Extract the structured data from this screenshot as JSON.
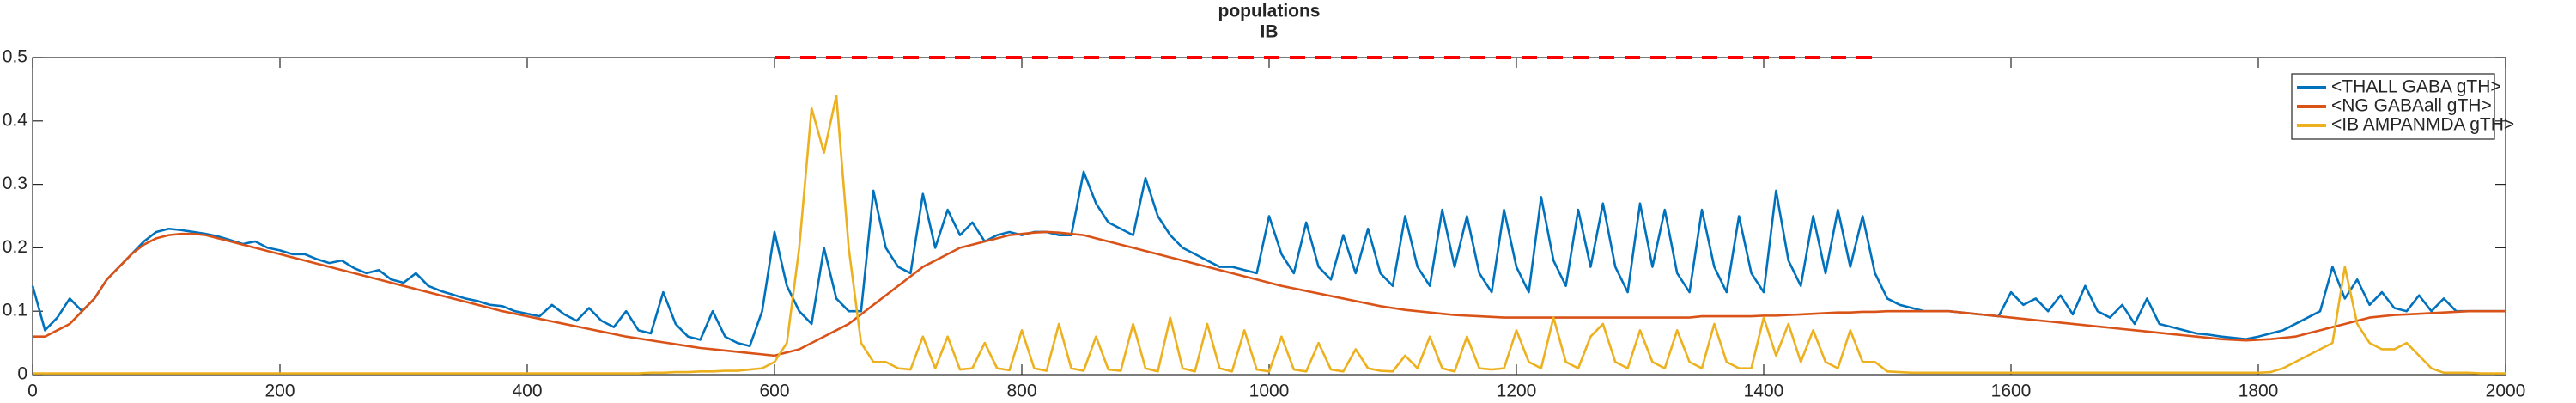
{
  "chart_data": {
    "type": "line",
    "title": "populations",
    "subtitle": "IB",
    "x": [
      0,
      10,
      20,
      30,
      40,
      50,
      60,
      70,
      80,
      90,
      100,
      110,
      120,
      130,
      140,
      150,
      160,
      170,
      180,
      190,
      200,
      210,
      220,
      230,
      240,
      250,
      260,
      270,
      280,
      290,
      300,
      310,
      320,
      330,
      340,
      350,
      360,
      370,
      380,
      390,
      400,
      410,
      420,
      430,
      440,
      450,
      460,
      470,
      480,
      490,
      500,
      510,
      520,
      530,
      540,
      550,
      560,
      570,
      580,
      590,
      600,
      610,
      620,
      630,
      640,
      650,
      660,
      670,
      680,
      690,
      700,
      710,
      720,
      730,
      740,
      750,
      760,
      770,
      780,
      790,
      800,
      810,
      820,
      830,
      840,
      850,
      860,
      870,
      880,
      890,
      900,
      910,
      920,
      930,
      940,
      950,
      960,
      970,
      980,
      990,
      1000,
      1010,
      1020,
      1030,
      1040,
      1050,
      1060,
      1070,
      1080,
      1090,
      1100,
      1110,
      1120,
      1130,
      1140,
      1150,
      1160,
      1170,
      1180,
      1190,
      1200,
      1210,
      1220,
      1230,
      1240,
      1250,
      1260,
      1270,
      1280,
      1290,
      1300,
      1310,
      1320,
      1330,
      1340,
      1350,
      1360,
      1370,
      1380,
      1390,
      1400,
      1410,
      1420,
      1430,
      1440,
      1450,
      1460,
      1470,
      1480,
      1490,
      1500,
      1510,
      1520,
      1530,
      1540,
      1550,
      1560,
      1570,
      1580,
      1590,
      1600,
      1610,
      1620,
      1630,
      1640,
      1650,
      1660,
      1670,
      1680,
      1690,
      1700,
      1710,
      1720,
      1730,
      1740,
      1750,
      1760,
      1770,
      1780,
      1790,
      1800,
      1810,
      1820,
      1830,
      1840,
      1850,
      1860,
      1870,
      1880,
      1890,
      1900,
      1910,
      1920,
      1930,
      1940,
      1950,
      1960,
      1970,
      1980,
      1990,
      2000
    ],
    "series": [
      {
        "name": "<THALL GABA gTH>",
        "color": "#0072bd",
        "values": [
          0.14,
          0.07,
          0.09,
          0.12,
          0.1,
          0.12,
          0.15,
          0.17,
          0.19,
          0.21,
          0.225,
          0.23,
          0.228,
          0.225,
          0.222,
          0.218,
          0.212,
          0.206,
          0.21,
          0.2,
          0.196,
          0.19,
          0.19,
          0.182,
          0.176,
          0.18,
          0.168,
          0.16,
          0.165,
          0.15,
          0.145,
          0.16,
          0.14,
          0.132,
          0.126,
          0.12,
          0.116,
          0.11,
          0.108,
          0.1,
          0.096,
          0.092,
          0.11,
          0.095,
          0.085,
          0.105,
          0.085,
          0.075,
          0.1,
          0.07,
          0.065,
          0.13,
          0.08,
          0.06,
          0.055,
          0.1,
          0.06,
          0.05,
          0.045,
          0.1,
          0.225,
          0.14,
          0.1,
          0.08,
          0.2,
          0.12,
          0.1,
          0.1,
          0.29,
          0.2,
          0.17,
          0.16,
          0.285,
          0.2,
          0.26,
          0.22,
          0.24,
          0.21,
          0.22,
          0.225,
          0.22,
          0.225,
          0.225,
          0.22,
          0.22,
          0.32,
          0.27,
          0.24,
          0.23,
          0.22,
          0.31,
          0.25,
          0.22,
          0.2,
          0.19,
          0.18,
          0.17,
          0.17,
          0.165,
          0.16,
          0.25,
          0.19,
          0.16,
          0.24,
          0.17,
          0.15,
          0.22,
          0.16,
          0.23,
          0.16,
          0.14,
          0.25,
          0.17,
          0.14,
          0.26,
          0.17,
          0.25,
          0.16,
          0.13,
          0.26,
          0.17,
          0.13,
          0.28,
          0.18,
          0.14,
          0.26,
          0.17,
          0.27,
          0.17,
          0.13,
          0.27,
          0.17,
          0.26,
          0.16,
          0.13,
          0.26,
          0.17,
          0.13,
          0.25,
          0.16,
          0.13,
          0.29,
          0.18,
          0.14,
          0.25,
          0.16,
          0.26,
          0.17,
          0.25,
          0.16,
          0.12,
          0.11,
          0.105,
          0.1,
          0.1,
          0.1,
          0.098,
          0.096,
          0.094,
          0.092,
          0.13,
          0.11,
          0.12,
          0.1,
          0.125,
          0.095,
          0.14,
          0.1,
          0.09,
          0.11,
          0.08,
          0.12,
          0.08,
          0.075,
          0.07,
          0.065,
          0.063,
          0.06,
          0.058,
          0.056,
          0.06,
          0.065,
          0.07,
          0.08,
          0.09,
          0.1,
          0.17,
          0.12,
          0.15,
          0.11,
          0.13,
          0.105,
          0.1,
          0.125,
          0.1,
          0.12,
          0.1,
          0.1,
          0.1,
          0.1,
          0.1
        ]
      },
      {
        "name": "<NG GABAall gTH>",
        "color": "#d95319",
        "values": [
          0.06,
          0.06,
          0.07,
          0.08,
          0.1,
          0.12,
          0.15,
          0.17,
          0.19,
          0.205,
          0.215,
          0.22,
          0.222,
          0.222,
          0.22,
          0.215,
          0.21,
          0.205,
          0.2,
          0.195,
          0.19,
          0.185,
          0.18,
          0.175,
          0.17,
          0.165,
          0.16,
          0.155,
          0.15,
          0.145,
          0.14,
          0.135,
          0.13,
          0.125,
          0.12,
          0.115,
          0.11,
          0.105,
          0.1,
          0.096,
          0.092,
          0.088,
          0.084,
          0.08,
          0.076,
          0.072,
          0.068,
          0.064,
          0.06,
          0.057,
          0.054,
          0.051,
          0.048,
          0.045,
          0.042,
          0.04,
          0.038,
          0.036,
          0.034,
          0.032,
          0.03,
          0.035,
          0.04,
          0.05,
          0.06,
          0.07,
          0.08,
          0.095,
          0.11,
          0.125,
          0.14,
          0.155,
          0.17,
          0.18,
          0.19,
          0.2,
          0.205,
          0.21,
          0.215,
          0.22,
          0.222,
          0.224,
          0.225,
          0.224,
          0.222,
          0.22,
          0.215,
          0.21,
          0.205,
          0.2,
          0.195,
          0.19,
          0.185,
          0.18,
          0.175,
          0.17,
          0.165,
          0.16,
          0.155,
          0.15,
          0.145,
          0.14,
          0.136,
          0.132,
          0.128,
          0.124,
          0.12,
          0.116,
          0.112,
          0.108,
          0.105,
          0.102,
          0.1,
          0.098,
          0.096,
          0.094,
          0.093,
          0.092,
          0.091,
          0.09,
          0.09,
          0.09,
          0.09,
          0.09,
          0.09,
          0.09,
          0.09,
          0.09,
          0.09,
          0.09,
          0.09,
          0.09,
          0.09,
          0.09,
          0.09,
          0.092,
          0.092,
          0.092,
          0.092,
          0.092,
          0.093,
          0.093,
          0.094,
          0.095,
          0.096,
          0.097,
          0.098,
          0.098,
          0.099,
          0.099,
          0.1,
          0.1,
          0.1,
          0.1,
          0.1,
          0.1,
          0.098,
          0.096,
          0.094,
          0.092,
          0.09,
          0.088,
          0.086,
          0.084,
          0.082,
          0.08,
          0.078,
          0.076,
          0.074,
          0.072,
          0.07,
          0.068,
          0.066,
          0.064,
          0.062,
          0.06,
          0.058,
          0.056,
          0.055,
          0.054,
          0.055,
          0.056,
          0.058,
          0.06,
          0.065,
          0.07,
          0.075,
          0.08,
          0.085,
          0.09,
          0.092,
          0.094,
          0.095,
          0.096,
          0.097,
          0.098,
          0.099,
          0.1,
          0.1,
          0.1,
          0.1
        ]
      },
      {
        "name": "<IB AMPANMDA gTH>",
        "color": "#edb120",
        "values": [
          0.002,
          0.002,
          0.002,
          0.002,
          0.002,
          0.002,
          0.002,
          0.002,
          0.002,
          0.002,
          0.002,
          0.002,
          0.002,
          0.002,
          0.002,
          0.002,
          0.002,
          0.002,
          0.002,
          0.002,
          0.002,
          0.002,
          0.002,
          0.002,
          0.002,
          0.002,
          0.002,
          0.002,
          0.002,
          0.002,
          0.002,
          0.002,
          0.002,
          0.002,
          0.002,
          0.002,
          0.002,
          0.002,
          0.002,
          0.002,
          0.002,
          0.002,
          0.002,
          0.002,
          0.002,
          0.002,
          0.002,
          0.002,
          0.002,
          0.002,
          0.003,
          0.003,
          0.004,
          0.004,
          0.005,
          0.005,
          0.006,
          0.006,
          0.008,
          0.01,
          0.02,
          0.05,
          0.2,
          0.42,
          0.35,
          0.44,
          0.2,
          0.05,
          0.02,
          0.02,
          0.01,
          0.008,
          0.06,
          0.01,
          0.06,
          0.008,
          0.01,
          0.05,
          0.01,
          0.007,
          0.07,
          0.01,
          0.006,
          0.08,
          0.01,
          0.006,
          0.06,
          0.008,
          0.006,
          0.08,
          0.01,
          0.005,
          0.09,
          0.01,
          0.005,
          0.08,
          0.01,
          0.005,
          0.07,
          0.008,
          0.005,
          0.06,
          0.008,
          0.005,
          0.05,
          0.008,
          0.005,
          0.04,
          0.01,
          0.006,
          0.005,
          0.03,
          0.01,
          0.06,
          0.01,
          0.005,
          0.06,
          0.01,
          0.008,
          0.01,
          0.07,
          0.02,
          0.01,
          0.09,
          0.02,
          0.01,
          0.06,
          0.08,
          0.02,
          0.01,
          0.07,
          0.02,
          0.01,
          0.07,
          0.02,
          0.01,
          0.08,
          0.02,
          0.01,
          0.01,
          0.09,
          0.03,
          0.08,
          0.02,
          0.07,
          0.02,
          0.01,
          0.07,
          0.02,
          0.02,
          0.005,
          0.004,
          0.003,
          0.003,
          0.003,
          0.003,
          0.003,
          0.003,
          0.003,
          0.003,
          0.003,
          0.003,
          0.003,
          0.003,
          0.003,
          0.003,
          0.003,
          0.003,
          0.003,
          0.003,
          0.003,
          0.003,
          0.003,
          0.003,
          0.003,
          0.003,
          0.003,
          0.003,
          0.003,
          0.003,
          0.003,
          0.004,
          0.01,
          0.02,
          0.03,
          0.04,
          0.05,
          0.17,
          0.08,
          0.05,
          0.04,
          0.04,
          0.05,
          0.03,
          0.01,
          0.003,
          0.003,
          0.003,
          0.002,
          0.002,
          0.002
        ]
      }
    ],
    "reference_line": {
      "x": [
        600,
        1490
      ],
      "y": 0.5,
      "color": "#ff0000",
      "style": "dashed"
    },
    "xlim": [
      0,
      2000
    ],
    "xticks": [
      0,
      200,
      400,
      600,
      800,
      1000,
      1200,
      1400,
      1600,
      1800,
      2000
    ],
    "ylim": [
      0,
      0.5
    ],
    "yticks": [
      0,
      0.1,
      0.2,
      0.3,
      0.4,
      0.5
    ],
    "grid": false,
    "legend": "top-right"
  }
}
